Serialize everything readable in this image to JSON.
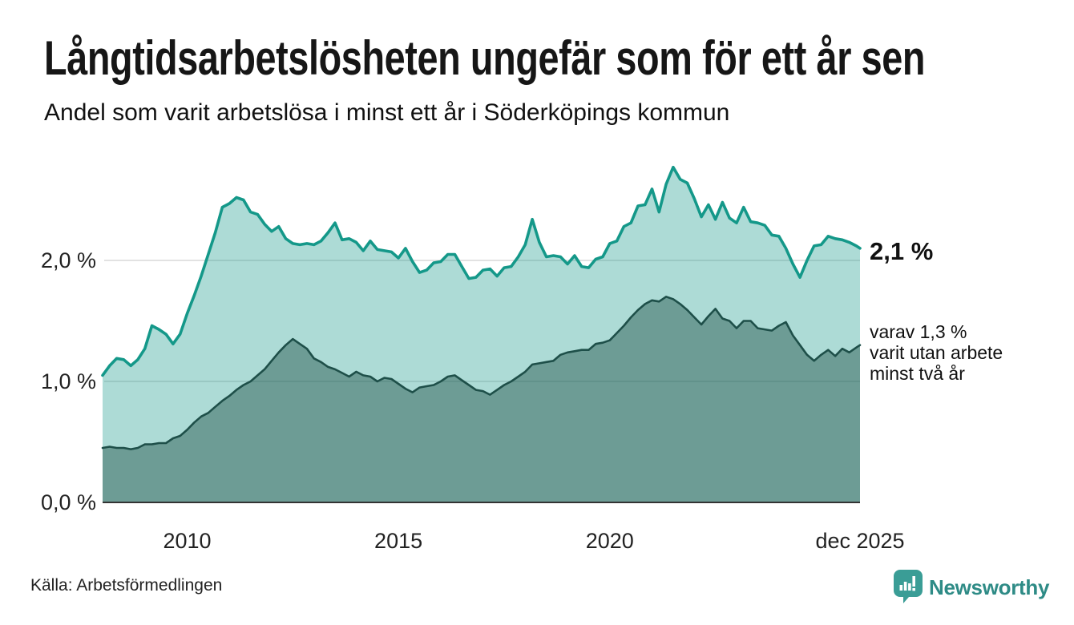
{
  "header": {
    "title": "Långtidsarbetslösheten ungefär som för ett år sen",
    "subtitle": "Andel som varit arbetslösa i minst ett år i Söderköpings kommun"
  },
  "annotations": {
    "latest_value_label": "2,1 %",
    "secondary_note": "varav 1,3 %\nvarit utan arbete\nminst två år"
  },
  "footer": {
    "source": "Källa: Arbetsförmedlingen",
    "brand_name": "Newsworthy"
  },
  "colors": {
    "accent_teal": "#149889",
    "dark_teal": "#1e4f49",
    "fill_light": "rgba(20,152,138,0.35)",
    "fill_dark": "rgba(30,79,72,0.45)",
    "grid": "#d9d9d9",
    "axis": "#333333",
    "text": "#222222",
    "brand": "#2e8b86",
    "brand_icon": "#3a9d96",
    "logo_glyph": "#ffffff"
  },
  "chart_data": {
    "type": "area",
    "title": "Långtidsarbetslösheten ungefär som för ett år sen",
    "subtitle": "Andel som varit arbetslösa i minst ett år i Söderköpings kommun",
    "source": "Källa: Arbetsförmedlingen",
    "grid": "horizontal",
    "legend": "none (direct labels at line ends)",
    "x_unit": "year (monthly series)",
    "xlim": [
      2008,
      2025.92
    ],
    "ylim": [
      0,
      2.9
    ],
    "x_start": 2008,
    "x_step_years": 0.166667,
    "xticks": [
      {
        "value": 2010,
        "label": "2010"
      },
      {
        "value": 2015,
        "label": "2015"
      },
      {
        "value": 2020,
        "label": "2020"
      },
      {
        "value": 2025.92,
        "label": "dec 2025"
      }
    ],
    "yticks": [
      {
        "value": 0,
        "label": "0,0 %"
      },
      {
        "value": 1,
        "label": "1,0 %"
      },
      {
        "value": 2,
        "label": "2,0 %"
      }
    ],
    "series": [
      {
        "name": "Andel arbetslösa minst ett år",
        "end_label": "2,1 %",
        "color": "#149889",
        "fill": "rgba(20,152,138,0.35)",
        "line_width": 3.6,
        "values": [
          1.05,
          1.13,
          1.19,
          1.18,
          1.13,
          1.18,
          1.27,
          1.46,
          1.43,
          1.39,
          1.31,
          1.39,
          1.56,
          1.71,
          1.87,
          2.05,
          2.23,
          2.44,
          2.47,
          2.52,
          2.5,
          2.4,
          2.38,
          2.3,
          2.24,
          2.28,
          2.18,
          2.14,
          2.13,
          2.14,
          2.13,
          2.16,
          2.23,
          2.31,
          2.17,
          2.18,
          2.15,
          2.08,
          2.16,
          2.09,
          2.08,
          2.07,
          2.02,
          2.1,
          1.99,
          1.9,
          1.92,
          1.98,
          1.99,
          2.05,
          2.05,
          1.95,
          1.85,
          1.86,
          1.92,
          1.93,
          1.87,
          1.94,
          1.95,
          2.03,
          2.13,
          2.34,
          2.15,
          2.03,
          2.04,
          2.03,
          1.97,
          2.04,
          1.95,
          1.94,
          2.01,
          2.03,
          2.14,
          2.16,
          2.28,
          2.31,
          2.45,
          2.46,
          2.59,
          2.4,
          2.63,
          2.77,
          2.67,
          2.64,
          2.51,
          2.36,
          2.46,
          2.34,
          2.48,
          2.35,
          2.31,
          2.44,
          2.32,
          2.31,
          2.29,
          2.21,
          2.2,
          2.1,
          1.97,
          1.86,
          2.0,
          2.12,
          2.13,
          2.2,
          2.18,
          2.17,
          2.15,
          2.12,
          2.1
        ]
      },
      {
        "name": "varav utan arbete minst två år",
        "end_label": "varav 1,3 % varit utan arbete minst två år",
        "color": "#1e4f49",
        "fill": "rgba(30,79,72,0.45)",
        "line_width": 2.6,
        "values": [
          0.45,
          0.46,
          0.45,
          0.45,
          0.44,
          0.45,
          0.48,
          0.48,
          0.49,
          0.49,
          0.53,
          0.55,
          0.6,
          0.66,
          0.71,
          0.74,
          0.79,
          0.84,
          0.88,
          0.93,
          0.97,
          1.0,
          1.05,
          1.1,
          1.17,
          1.24,
          1.3,
          1.35,
          1.31,
          1.27,
          1.19,
          1.16,
          1.12,
          1.1,
          1.07,
          1.04,
          1.08,
          1.05,
          1.04,
          1.0,
          1.03,
          1.02,
          0.98,
          0.94,
          0.91,
          0.95,
          0.96,
          0.97,
          1.0,
          1.04,
          1.05,
          1.01,
          0.97,
          0.93,
          0.92,
          0.89,
          0.93,
          0.97,
          1.0,
          1.04,
          1.08,
          1.14,
          1.15,
          1.16,
          1.17,
          1.22,
          1.24,
          1.25,
          1.26,
          1.26,
          1.31,
          1.32,
          1.34,
          1.4,
          1.46,
          1.53,
          1.59,
          1.64,
          1.67,
          1.66,
          1.7,
          1.68,
          1.64,
          1.59,
          1.53,
          1.47,
          1.54,
          1.6,
          1.52,
          1.5,
          1.44,
          1.5,
          1.5,
          1.44,
          1.43,
          1.42,
          1.46,
          1.49,
          1.38,
          1.3,
          1.22,
          1.17,
          1.22,
          1.26,
          1.21,
          1.27,
          1.24,
          1.28,
          1.3
        ]
      }
    ]
  }
}
